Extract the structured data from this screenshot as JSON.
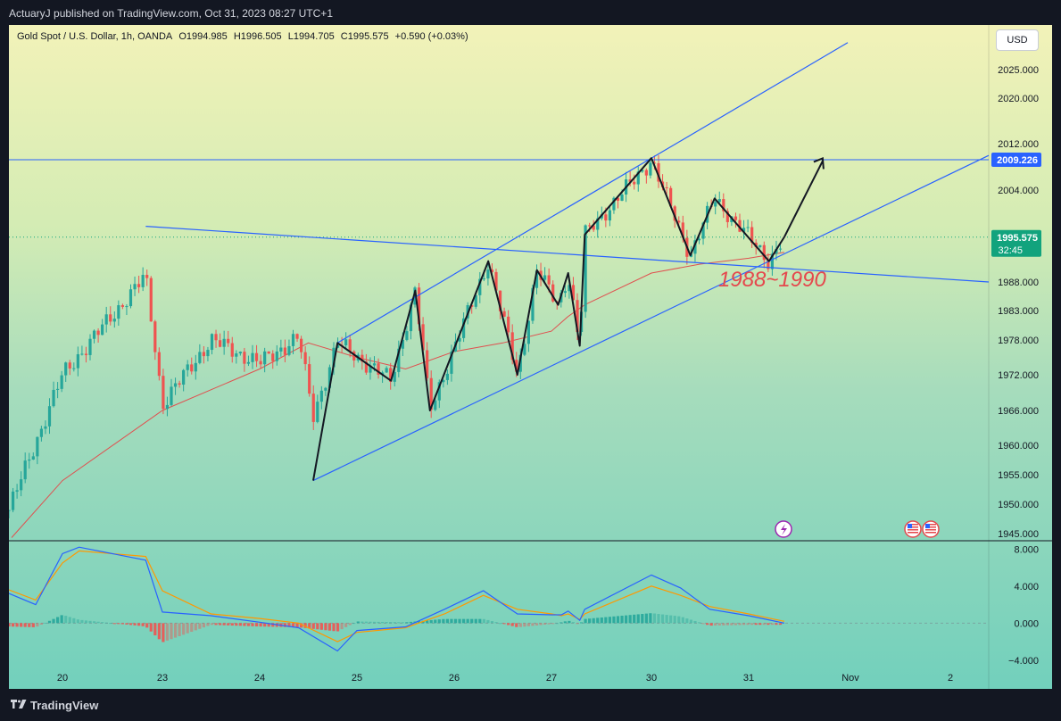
{
  "header": {
    "published_text": "ActuaryJ published on TradingView.com, Oct 31, 2023 08:27 UTC+1"
  },
  "legend": {
    "symbol": "Gold Spot / U.S. Dollar, 1h, OANDA",
    "open": "O1994.985",
    "high": "H1996.505",
    "low": "L1994.705",
    "close": "C1995.575",
    "change": "+0.590 (+0.03%)"
  },
  "currency_button": "USD",
  "footer": {
    "brand": "TradingView"
  },
  "colors": {
    "candle_up": "#26a69a",
    "candle_down": "#ef5350",
    "trendline": "#2962ff",
    "ma": "#e0504f",
    "zigzag": "#131722",
    "annotation": "#e5484d",
    "macd": "#2962ff",
    "signal": "#ff9800",
    "hist_up": "#26a69a",
    "hist_down": "#ef5350"
  },
  "chart_data": [
    {
      "type": "candlestick",
      "symbol": "Gold Spot / U.S. Dollar",
      "timeframe": "1h",
      "x_ticks": [
        "20",
        "23",
        "24",
        "25",
        "26",
        "27",
        "30",
        "31",
        "Nov",
        "2"
      ],
      "y_ticks": [
        "2025.000",
        "2020.000",
        "2012.000",
        "2004.000",
        "1988.000",
        "1983.000",
        "1978.000",
        "1972.000",
        "1966.000",
        "1960.000",
        "1955.000",
        "1950.000",
        "1945.000"
      ],
      "ylim": [
        1944,
        2030
      ],
      "price_labels": [
        {
          "value": 2009.226,
          "text": "2009.226"
        },
        {
          "value": 1995.575,
          "text": "1995.575",
          "subtext": "32:45"
        }
      ],
      "anchors": [
        {
          "x": "19",
          "close": 1949.0
        },
        {
          "x": "20",
          "close": 1972.0
        },
        {
          "x": "22.5",
          "close": 1989.0,
          "high": 1997.5
        },
        {
          "x": "23",
          "close": 1967.0
        },
        {
          "x": "23.5",
          "close": 1978.0
        },
        {
          "x": "24",
          "close": 1974.0
        },
        {
          "x": "24.4",
          "close": 1978.5
        },
        {
          "x": "24.55",
          "close": 1965.0,
          "low": 1954.0
        },
        {
          "x": "24.8",
          "close": 1977.5
        },
        {
          "x": "25.35",
          "close": 1971.0
        },
        {
          "x": "25.6",
          "close": 1986.5
        },
        {
          "x": "25.75",
          "close": 1966.0
        },
        {
          "x": "26.35",
          "close": 1991.5
        },
        {
          "x": "26.65",
          "close": 1972.0
        },
        {
          "x": "26.85",
          "close": 1990.0
        },
        {
          "x": "27.2",
          "close": 1984.0
        },
        {
          "x": "27.5",
          "close": 1989.5
        },
        {
          "x": "27.85",
          "close": 1977.0
        },
        {
          "x": "28.0",
          "close": 1996.0
        },
        {
          "x": "30.0",
          "close": 2009.2,
          "high": 2009.5
        },
        {
          "x": "30.4",
          "close": 1992.5
        },
        {
          "x": "30.65",
          "close": 2002.5
        },
        {
          "x": "31.2",
          "close": 1991.5
        },
        {
          "x": "31.35",
          "close": 1995.6
        }
      ],
      "moving_average": [
        {
          "x": "19.05",
          "value": 1944.5
        },
        {
          "x": "20",
          "value": 1954.0
        },
        {
          "x": "23",
          "value": 1966.0
        },
        {
          "x": "24",
          "value": 1973.0
        },
        {
          "x": "24.5",
          "value": 1977.5
        },
        {
          "x": "25",
          "value": 1975.0
        },
        {
          "x": "25.5",
          "value": 1973.0
        },
        {
          "x": "26",
          "value": 1976.0
        },
        {
          "x": "26.5",
          "value": 1977.5
        },
        {
          "x": "27",
          "value": 1979.5
        },
        {
          "x": "27.5",
          "value": 1982.0
        },
        {
          "x": "28",
          "value": 1984.0
        },
        {
          "x": "30",
          "value": 1989.5
        },
        {
          "x": "30.5",
          "value": 1991.0
        },
        {
          "x": "31",
          "value": 1992.0
        },
        {
          "x": "31.35",
          "value": 1993.0
        }
      ],
      "annotations": [
        {
          "text": "1988~1990"
        }
      ]
    },
    {
      "type": "macd",
      "y_ticks": [
        "8.000",
        "4.000",
        "0.000",
        "−4.000"
      ],
      "ylim": [
        -4.4,
        8.8
      ],
      "macd_line": [
        {
          "x": "19",
          "value": 3.2
        },
        {
          "x": "19.5",
          "value": 2.0
        },
        {
          "x": "20",
          "value": 7.5
        },
        {
          "x": "20.5",
          "value": 8.2
        },
        {
          "x": "22.5",
          "value": 6.8
        },
        {
          "x": "23",
          "value": 1.2
        },
        {
          "x": "23.5",
          "value": 0.8
        },
        {
          "x": "24",
          "value": 0.1
        },
        {
          "x": "24.4",
          "value": -0.5
        },
        {
          "x": "24.8",
          "value": -3.0
        },
        {
          "x": "25",
          "value": -0.8
        },
        {
          "x": "25.5",
          "value": -0.4
        },
        {
          "x": "25.9",
          "value": 1.5
        },
        {
          "x": "26.3",
          "value": 3.5
        },
        {
          "x": "26.65",
          "value": 1.0
        },
        {
          "x": "27",
          "value": 0.9
        },
        {
          "x": "27.3",
          "value": 0.9
        },
        {
          "x": "27.5",
          "value": 1.3
        },
        {
          "x": "27.85",
          "value": 0.3
        },
        {
          "x": "28",
          "value": 1.5
        },
        {
          "x": "30",
          "value": 5.2
        },
        {
          "x": "30.3",
          "value": 3.8
        },
        {
          "x": "30.6",
          "value": 1.5
        },
        {
          "x": "31",
          "value": 0.8
        },
        {
          "x": "31.35",
          "value": 0.0
        }
      ],
      "signal_line": [
        {
          "x": "19",
          "value": 3.6
        },
        {
          "x": "19.5",
          "value": 2.5
        },
        {
          "x": "20",
          "value": 6.5
        },
        {
          "x": "20.5",
          "value": 7.8
        },
        {
          "x": "22.5",
          "value": 7.2
        },
        {
          "x": "23",
          "value": 3.5
        },
        {
          "x": "23.5",
          "value": 1.0
        },
        {
          "x": "24",
          "value": 0.5
        },
        {
          "x": "24.4",
          "value": 0.0
        },
        {
          "x": "24.8",
          "value": -2.0
        },
        {
          "x": "25",
          "value": -1.0
        },
        {
          "x": "25.5",
          "value": -0.5
        },
        {
          "x": "25.9",
          "value": 1.0
        },
        {
          "x": "26.3",
          "value": 3.0
        },
        {
          "x": "26.65",
          "value": 1.5
        },
        {
          "x": "27",
          "value": 1.0
        },
        {
          "x": "27.3",
          "value": 0.8
        },
        {
          "x": "27.5",
          "value": 1.0
        },
        {
          "x": "27.85",
          "value": 0.4
        },
        {
          "x": "28",
          "value": 1.0
        },
        {
          "x": "30",
          "value": 4.0
        },
        {
          "x": "30.3",
          "value": 3.0
        },
        {
          "x": "30.6",
          "value": 1.8
        },
        {
          "x": "31",
          "value": 1.0
        },
        {
          "x": "31.35",
          "value": 0.2
        }
      ]
    }
  ]
}
